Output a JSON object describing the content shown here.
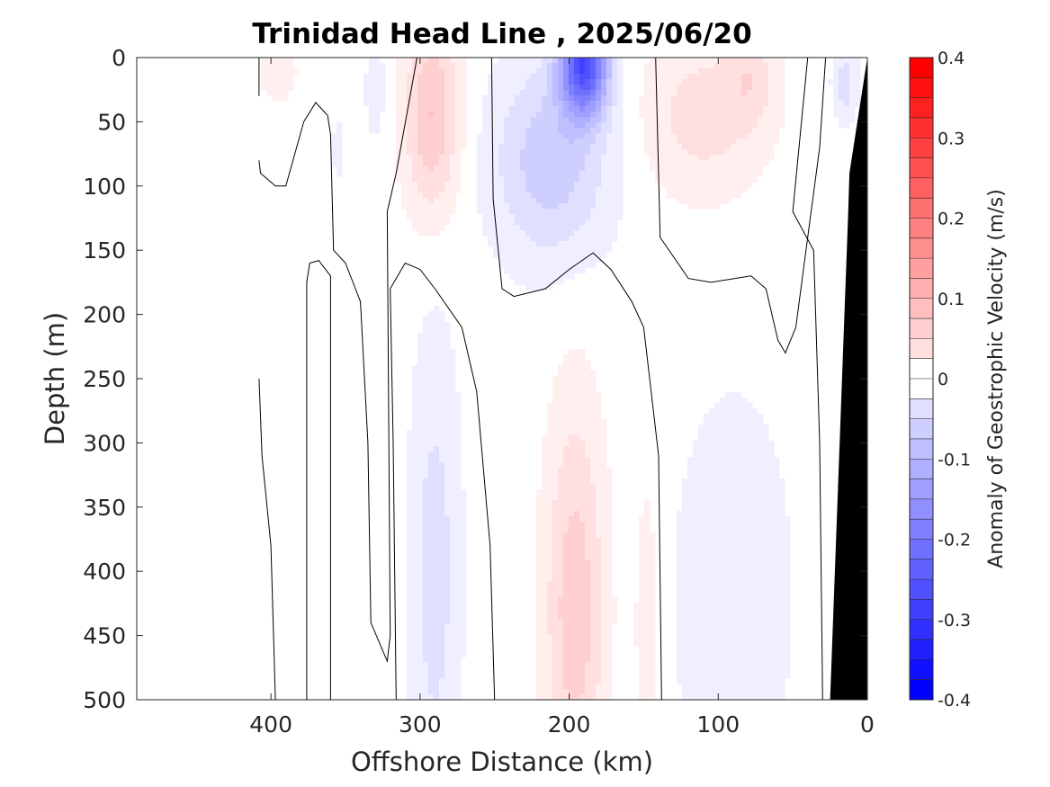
{
  "chart_data": {
    "type": "heatmap",
    "subtype": "filled-contour",
    "title": "Trinidad Head Line , 2025/06/20",
    "xlabel": "Offshore Distance (km)",
    "ylabel": "Depth (m)",
    "colorbar_label": "Anomaly of Geostrophic Velocity (m/s)",
    "xlim": [
      490,
      0
    ],
    "ylim": [
      0,
      500
    ],
    "x_ticks": [
      400,
      300,
      200,
      100,
      0
    ],
    "y_ticks": [
      0,
      50,
      100,
      150,
      200,
      250,
      300,
      350,
      400,
      450,
      500
    ],
    "x_tick_labels": [
      "400",
      "300",
      "200",
      "100",
      "0"
    ],
    "y_tick_labels": [
      "0",
      "50",
      "100",
      "150",
      "200",
      "250",
      "300",
      "350",
      "400",
      "450",
      "500"
    ],
    "colorbar_ticks": [
      "0.4",
      "0.3",
      "0.2",
      "0.1",
      "0",
      "-0.1",
      "-0.2",
      "-0.3",
      "-0.4"
    ],
    "color_range": [
      -0.4,
      0.4
    ],
    "color_step": 0.025,
    "colors": {
      "positive": "#ff0000",
      "negative": "#0000ff",
      "zero": "#ffffff",
      "bottom": "#000000"
    },
    "features": [
      {
        "x": 292,
        "depth": 45,
        "value": 0.09,
        "spread_x": 13,
        "spread_depth": 55
      },
      {
        "x": 190,
        "depth": 5,
        "value": -0.27,
        "spread_x": 11,
        "spread_depth": 28
      },
      {
        "x": 212,
        "depth": 80,
        "value": -0.08,
        "spread_x": 28,
        "spread_depth": 55
      },
      {
        "x": 110,
        "depth": 45,
        "value": 0.05,
        "spread_x": 30,
        "spread_depth": 45
      },
      {
        "x": 78,
        "depth": 15,
        "value": 0.04,
        "spread_x": 12,
        "spread_depth": 25
      },
      {
        "x": 15,
        "depth": 20,
        "value": -0.05,
        "spread_x": 6,
        "spread_depth": 22
      },
      {
        "x": 196,
        "depth": 430,
        "value": 0.08,
        "spread_x": 14,
        "spread_depth": 110
      },
      {
        "x": 290,
        "depth": 400,
        "value": -0.05,
        "spread_x": 12,
        "spread_depth": 130
      },
      {
        "x": 90,
        "depth": 420,
        "value": -0.03,
        "spread_x": 30,
        "spread_depth": 120
      },
      {
        "x": 148,
        "depth": 440,
        "value": 0.04,
        "spread_x": 5,
        "spread_depth": 70
      },
      {
        "x": 330,
        "depth": 25,
        "value": -0.03,
        "spread_x": 5,
        "spread_depth": 28
      },
      {
        "x": 395,
        "depth": 10,
        "value": 0.03,
        "spread_x": 9,
        "spread_depth": 18
      },
      {
        "x": 355,
        "depth": 70,
        "value": -0.025,
        "spread_x": 3,
        "spread_depth": 18
      }
    ],
    "bottom_profile": [
      [
        0,
        0
      ],
      [
        12,
        90
      ],
      [
        13,
        125
      ],
      [
        25,
        500
      ],
      [
        0,
        500
      ]
    ],
    "zero_contours": [
      [
        [
          408,
          0
        ],
        [
          408,
          30
        ]
      ],
      [
        [
          408,
          80
        ],
        [
          407,
          90
        ],
        [
          397,
          100
        ],
        [
          390,
          100
        ],
        [
          378,
          50
        ],
        [
          370,
          35
        ],
        [
          362,
          45
        ],
        [
          360,
          60
        ],
        [
          358,
          150
        ],
        [
          350,
          160
        ],
        [
          340,
          190
        ],
        [
          335,
          300
        ],
        [
          333,
          440
        ],
        [
          322,
          470
        ],
        [
          320,
          450
        ],
        [
          322,
          120
        ],
        [
          316,
          90
        ],
        [
          302,
          0
        ]
      ],
      [
        [
          408,
          250
        ],
        [
          406,
          310
        ],
        [
          400,
          380
        ],
        [
          397,
          500
        ]
      ],
      [
        [
          376,
          500
        ],
        [
          376,
          175
        ],
        [
          374,
          160
        ],
        [
          368,
          158
        ],
        [
          360,
          170
        ],
        [
          360,
          500
        ]
      ],
      [
        [
          316,
          500
        ],
        [
          318,
          300
        ],
        [
          320,
          180
        ],
        [
          310,
          160
        ],
        [
          300,
          165
        ],
        [
          290,
          180
        ],
        [
          272,
          210
        ],
        [
          262,
          260
        ],
        [
          253,
          380
        ],
        [
          250,
          500
        ]
      ],
      [
        [
          252,
          0
        ],
        [
          251,
          110
        ],
        [
          245,
          180
        ],
        [
          237,
          186
        ],
        [
          216,
          180
        ],
        [
          200,
          165
        ],
        [
          184,
          152
        ],
        [
          172,
          165
        ],
        [
          158,
          190
        ],
        [
          150,
          210
        ],
        [
          140,
          310
        ],
        [
          138,
          500
        ]
      ],
      [
        [
          142,
          0
        ],
        [
          139,
          140
        ],
        [
          120,
          172
        ],
        [
          105,
          175
        ],
        [
          78,
          170
        ],
        [
          68,
          180
        ],
        [
          60,
          220
        ],
        [
          55,
          230
        ],
        [
          48,
          210
        ],
        [
          40,
          140
        ],
        [
          32,
          70
        ],
        [
          28,
          0
        ]
      ],
      [
        [
          30,
          500
        ],
        [
          32,
          300
        ],
        [
          36,
          150
        ],
        [
          50,
          120
        ],
        [
          40,
          0
        ]
      ]
    ]
  }
}
